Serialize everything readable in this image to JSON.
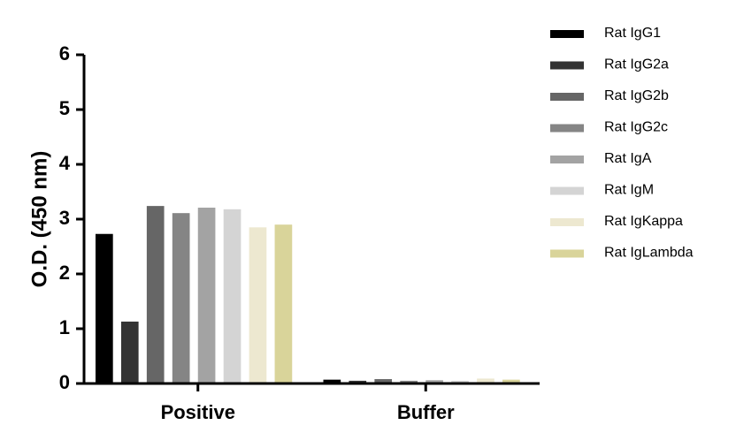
{
  "chart_data": {
    "type": "bar",
    "y_label": "O.D. (450 nm)",
    "categories": [
      "Positive",
      "Buffer"
    ],
    "series": [
      {
        "name": "Rat IgG1",
        "color": "#000000",
        "values": [
          2.73,
          0.07
        ]
      },
      {
        "name": "Rat IgG2a",
        "color": "#333333",
        "values": [
          1.13,
          0.05
        ]
      },
      {
        "name": "Rat IgG2b",
        "color": "#666666",
        "values": [
          3.24,
          0.08
        ]
      },
      {
        "name": "Rat IgG2c",
        "color": "#858585",
        "values": [
          3.11,
          0.05
        ]
      },
      {
        "name": "Rat IgA",
        "color": "#a3a3a3",
        "values": [
          3.21,
          0.06
        ]
      },
      {
        "name": "Rat IgM",
        "color": "#d4d4d4",
        "values": [
          3.18,
          0.05
        ]
      },
      {
        "name": "Rat IgKappa",
        "color": "#ede8d0",
        "values": [
          2.85,
          0.09
        ]
      },
      {
        "name": "Rat IgLambda",
        "color": "#d9d49a",
        "values": [
          2.9,
          0.07
        ]
      }
    ],
    "ylim": [
      0,
      6
    ],
    "yticks": [
      0,
      1,
      2,
      3,
      4,
      5,
      6
    ],
    "grid": false,
    "legend": "right"
  }
}
